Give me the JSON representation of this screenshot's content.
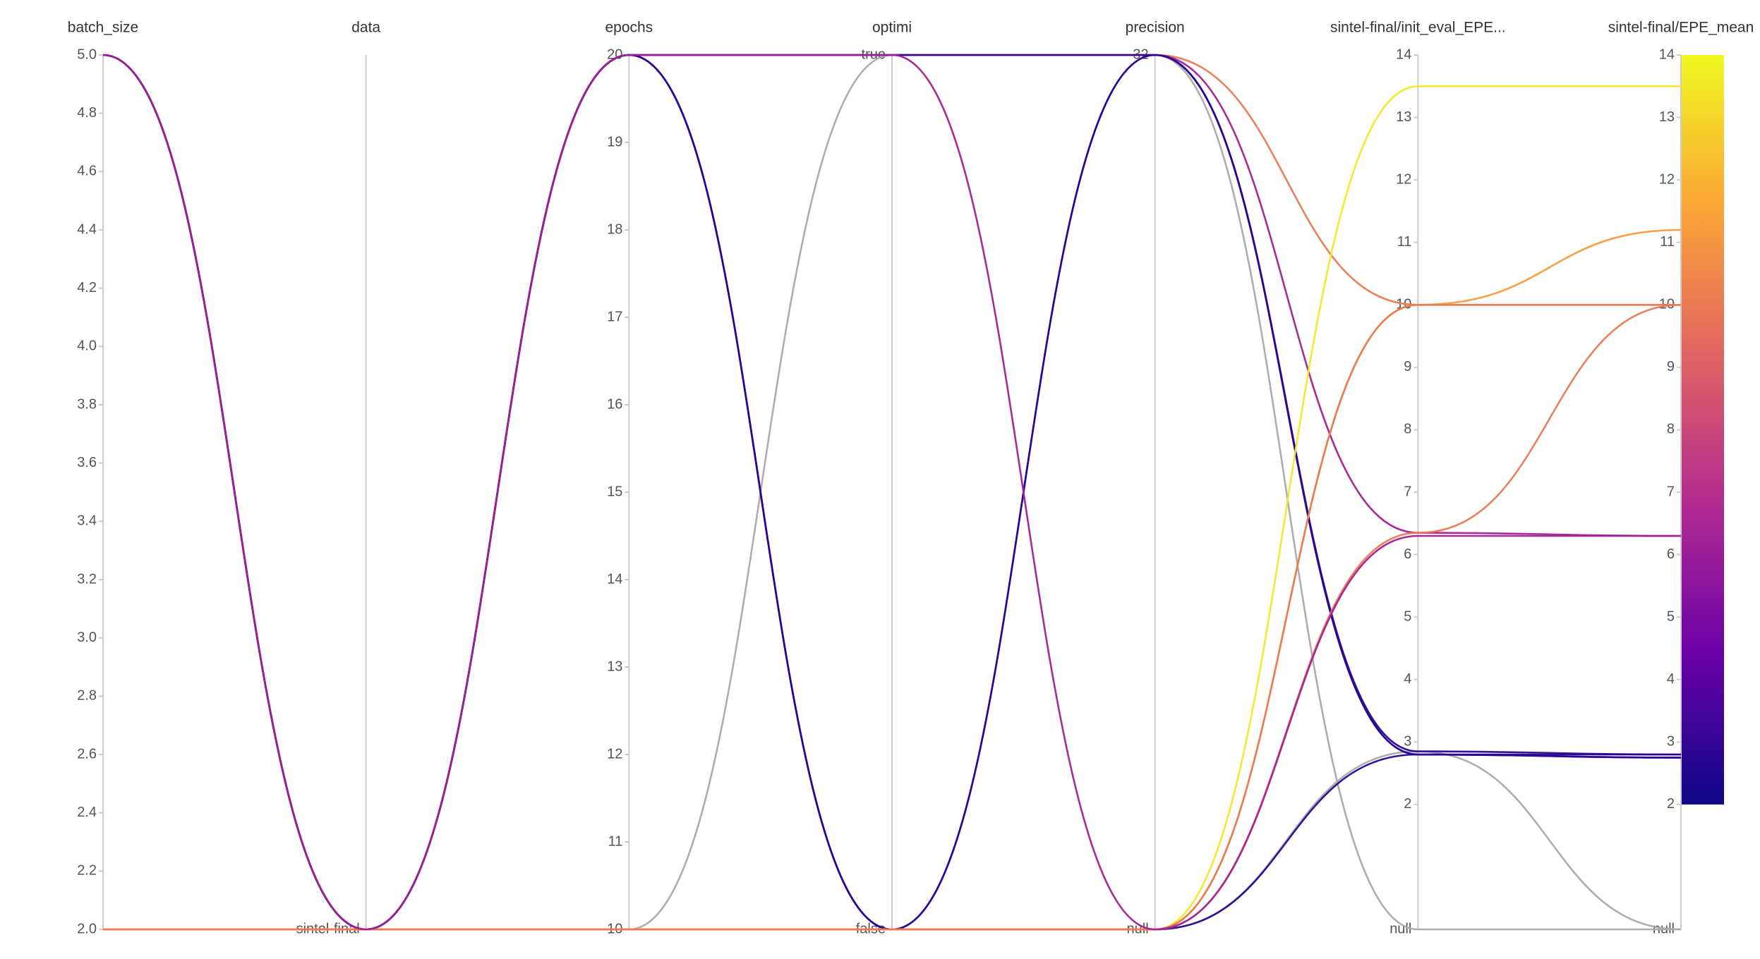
{
  "chart_data": {
    "type": "parallel",
    "axes": [
      {
        "name": "batch_size",
        "ylim": [
          2,
          5
        ],
        "ticks": [
          {
            "value": 2,
            "label": "2.0"
          },
          {
            "value": 2.2,
            "label": "2.2"
          },
          {
            "value": 2.4,
            "label": "2.4"
          },
          {
            "value": 2.6,
            "label": "2.6"
          },
          {
            "value": 2.8,
            "label": "2.8"
          },
          {
            "value": 3,
            "label": "3.0"
          },
          {
            "value": 3.2,
            "label": "3.2"
          },
          {
            "value": 3.4,
            "label": "3.4"
          },
          {
            "value": 3.6,
            "label": "3.6"
          },
          {
            "value": 3.8,
            "label": "3.8"
          },
          {
            "value": 4,
            "label": "4.0"
          },
          {
            "value": 4.2,
            "label": "4.2"
          },
          {
            "value": 4.4,
            "label": "4.4"
          },
          {
            "value": 4.6,
            "label": "4.6"
          },
          {
            "value": 4.8,
            "label": "4.8"
          },
          {
            "value": 5,
            "label": "5.0"
          }
        ]
      },
      {
        "name": "data",
        "categories": [
          "sintel-final"
        ]
      },
      {
        "name": "epochs",
        "ylim": [
          10,
          20
        ],
        "ticks": [
          10,
          11,
          12,
          13,
          14,
          15,
          16,
          17,
          18,
          19,
          20
        ]
      },
      {
        "name": "optimi",
        "categories": [
          "false",
          "true"
        ]
      },
      {
        "name": "precision",
        "categories": [
          "null",
          "32"
        ]
      },
      {
        "name": "sintel-final/init_eval_EPE...",
        "ylim": [
          0,
          14
        ],
        "ticks": [
          2,
          3,
          4,
          5,
          6,
          7,
          8,
          9,
          10,
          11,
          12,
          13,
          14
        ],
        "null_label": "null"
      },
      {
        "name": "sintel-final/EPE_mean",
        "ylim": [
          0,
          14
        ],
        "ticks": [
          2,
          3,
          4,
          5,
          6,
          7,
          8,
          9,
          10,
          11,
          12,
          13,
          14
        ],
        "null_label": "null"
      }
    ],
    "runs": [
      {
        "values": [
          2,
          "sintel-final",
          10,
          "true",
          "32",
          null,
          null
        ]
      },
      {
        "values": [
          2,
          "sintel-final",
          10,
          "false",
          "null",
          2.85,
          null
        ]
      },
      {
        "values": [
          5,
          "sintel-final",
          20,
          "true",
          "32",
          10,
          10
        ]
      },
      {
        "values": [
          5,
          "sintel-final",
          20,
          "true",
          "32",
          6.35,
          6.3
        ]
      },
      {
        "values": [
          5,
          "sintel-final",
          20,
          "false",
          "32",
          2.85,
          2.8
        ]
      },
      {
        "values": [
          5,
          "sintel-final",
          20,
          "false",
          "32",
          2.8,
          2.75
        ]
      },
      {
        "values": [
          5,
          "sintel-final",
          20,
          "false",
          "null",
          2.8,
          2.75
        ]
      },
      {
        "values": [
          5,
          "sintel-final",
          20,
          "true",
          "32",
          2.8,
          2.8
        ]
      },
      {
        "values": [
          2,
          "sintel-final",
          10,
          "false",
          "null",
          13.5,
          13.5
        ]
      },
      {
        "values": [
          2,
          "sintel-final",
          10,
          "false",
          "null",
          10,
          11.2
        ]
      },
      {
        "values": [
          2,
          "sintel-final",
          10,
          "false",
          "null",
          6.35,
          10
        ]
      },
      {
        "values": [
          2,
          "sintel-final",
          10,
          "false",
          "null",
          10,
          10
        ]
      },
      {
        "values": [
          5,
          "sintel-final",
          20,
          "true",
          "null",
          6.3,
          6.3
        ]
      }
    ],
    "color_axis": 6,
    "colorbar": {
      "lim": [
        2,
        14
      ],
      "colors": [
        "#0d0887",
        "#6a00a8",
        "#b12a90",
        "#e16462",
        "#fca636",
        "#f0f921"
      ]
    },
    "null_color": "#aaaaaa"
  }
}
